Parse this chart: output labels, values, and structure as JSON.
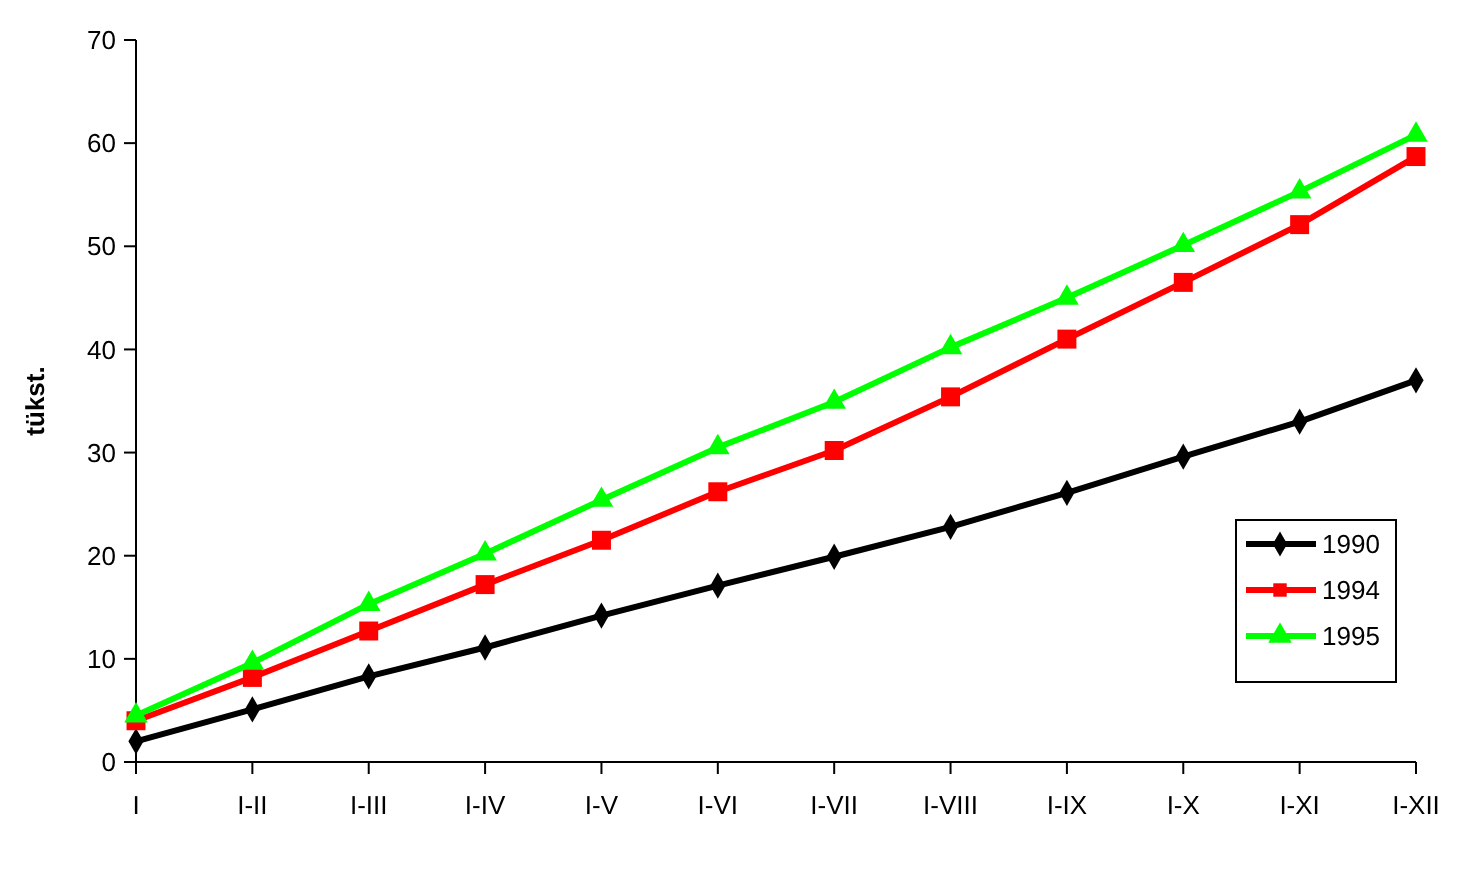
{
  "chart_data": {
    "type": "line",
    "ylabel": "tükst.",
    "categories": [
      "I",
      "I-II",
      "I-III",
      "I-IV",
      "I-V",
      "I-VI",
      "I-VII",
      "I-VIII",
      "I-IX",
      "I-X",
      "I-XI",
      "I-XII"
    ],
    "series": [
      {
        "name": "1990",
        "color": "#000000",
        "marker": "diamond",
        "values": [
          2.0,
          5.1,
          8.3,
          11.1,
          14.2,
          17.1,
          19.9,
          22.8,
          26.1,
          29.6,
          33.0,
          37.0
        ]
      },
      {
        "name": "1994",
        "color": "#ff0000",
        "marker": "square",
        "values": [
          4.0,
          8.2,
          12.7,
          17.2,
          21.5,
          26.2,
          30.2,
          35.4,
          41.0,
          46.5,
          52.1,
          58.7
        ]
      },
      {
        "name": "1995",
        "color": "#00ff00",
        "marker": "triangle",
        "values": [
          4.5,
          9.6,
          15.3,
          20.2,
          25.4,
          30.5,
          34.9,
          40.2,
          45.0,
          50.1,
          55.3,
          60.8
        ]
      }
    ],
    "ylim": [
      0,
      70
    ],
    "yticks": [
      0,
      10,
      20,
      30,
      40,
      50,
      60,
      70
    ],
    "grid": false,
    "legend": "bottom right",
    "line_style": "solid"
  }
}
